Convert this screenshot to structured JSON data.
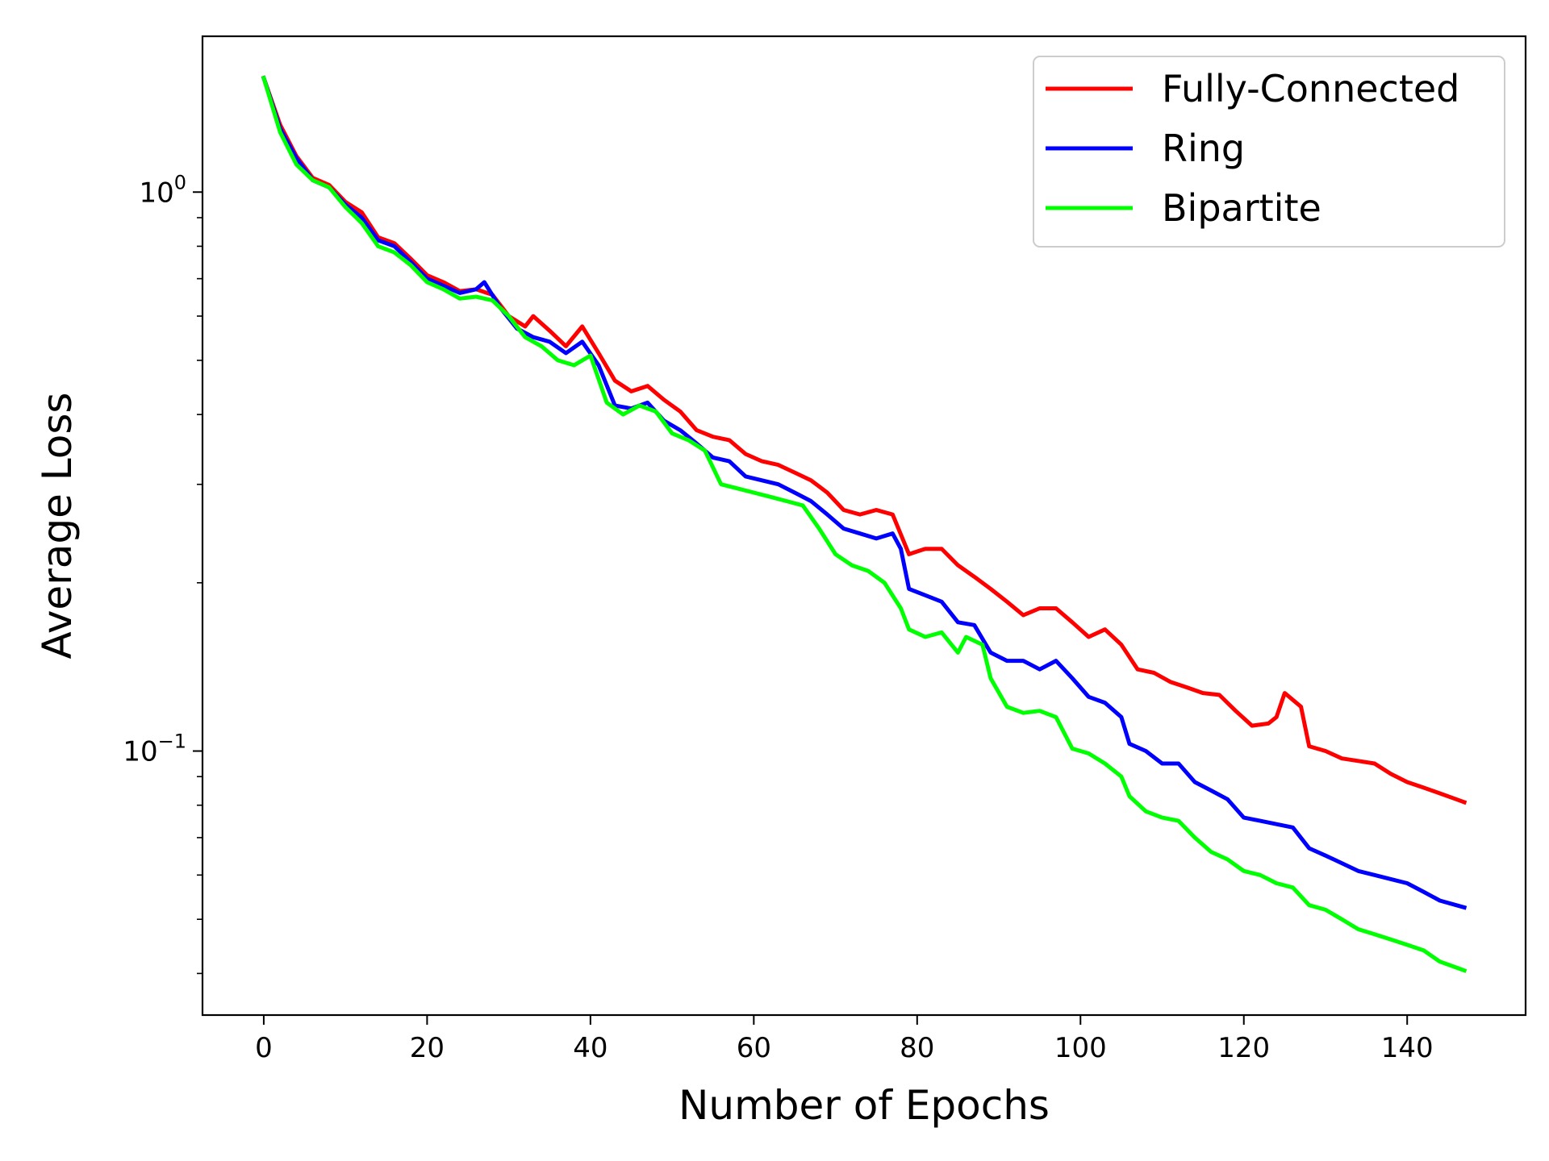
{
  "chart_data": {
    "type": "line",
    "xlabel": "Number of Epochs",
    "ylabel": "Average Loss",
    "yscale": "log",
    "xlim": [
      -7.5,
      154.5
    ],
    "ylim": [
      0.0337,
      1.9
    ],
    "xticks": [
      0,
      20,
      40,
      60,
      80,
      100,
      120,
      140
    ],
    "yticks": [
      {
        "value": 1.0,
        "base": "10",
        "exp": "0"
      },
      {
        "value": 0.1,
        "base": "10",
        "exp": "−1"
      }
    ],
    "grid": false,
    "legend_position": "top-right",
    "series": [
      {
        "name": "Fully-Connected",
        "color": "#ff0000",
        "points": [
          [
            0,
            1.6
          ],
          [
            2,
            1.32
          ],
          [
            4,
            1.16
          ],
          [
            6,
            1.06
          ],
          [
            8,
            1.03
          ],
          [
            10,
            0.96
          ],
          [
            12,
            0.92
          ],
          [
            14,
            0.83
          ],
          [
            16,
            0.81
          ],
          [
            18,
            0.76
          ],
          [
            20,
            0.71
          ],
          [
            22,
            0.69
          ],
          [
            24,
            0.665
          ],
          [
            26,
            0.67
          ],
          [
            28,
            0.655
          ],
          [
            30,
            0.6
          ],
          [
            32,
            0.575
          ],
          [
            33,
            0.6
          ],
          [
            35,
            0.565
          ],
          [
            37,
            0.53
          ],
          [
            39,
            0.575
          ],
          [
            41,
            0.515
          ],
          [
            43,
            0.46
          ],
          [
            45,
            0.44
          ],
          [
            47,
            0.45
          ],
          [
            49,
            0.425
          ],
          [
            51,
            0.405
          ],
          [
            53,
            0.375
          ],
          [
            55,
            0.365
          ],
          [
            57,
            0.36
          ],
          [
            59,
            0.34
          ],
          [
            61,
            0.33
          ],
          [
            63,
            0.325
          ],
          [
            65,
            0.315
          ],
          [
            67,
            0.305
          ],
          [
            69,
            0.29
          ],
          [
            71,
            0.27
          ],
          [
            73,
            0.265
          ],
          [
            75,
            0.27
          ],
          [
            77,
            0.265
          ],
          [
            79,
            0.225
          ],
          [
            81,
            0.23
          ],
          [
            83,
            0.23
          ],
          [
            85,
            0.215
          ],
          [
            87,
            0.205
          ],
          [
            89,
            0.195
          ],
          [
            91,
            0.185
          ],
          [
            93,
            0.175
          ],
          [
            95,
            0.18
          ],
          [
            97,
            0.18
          ],
          [
            99,
            0.17
          ],
          [
            101,
            0.16
          ],
          [
            103,
            0.165
          ],
          [
            105,
            0.155
          ],
          [
            107,
            0.14
          ],
          [
            109,
            0.138
          ],
          [
            111,
            0.133
          ],
          [
            113,
            0.13
          ],
          [
            115,
            0.127
          ],
          [
            117,
            0.126
          ],
          [
            119,
            0.118
          ],
          [
            121,
            0.111
          ],
          [
            123,
            0.112
          ],
          [
            124,
            0.115
          ],
          [
            125,
            0.127
          ],
          [
            127,
            0.12
          ],
          [
            128,
            0.102
          ],
          [
            130,
            0.1
          ],
          [
            132,
            0.097
          ],
          [
            134,
            0.096
          ],
          [
            136,
            0.095
          ],
          [
            138,
            0.091
          ],
          [
            140,
            0.088
          ],
          [
            142,
            0.086
          ],
          [
            144,
            0.084
          ],
          [
            146,
            0.082
          ],
          [
            147,
            0.081
          ]
        ]
      },
      {
        "name": "Ring",
        "color": "#0000ff",
        "points": [
          [
            0,
            1.6
          ],
          [
            2,
            1.3
          ],
          [
            4,
            1.15
          ],
          [
            6,
            1.05
          ],
          [
            8,
            1.02
          ],
          [
            10,
            0.95
          ],
          [
            12,
            0.9
          ],
          [
            14,
            0.82
          ],
          [
            16,
            0.8
          ],
          [
            18,
            0.75
          ],
          [
            20,
            0.7
          ],
          [
            22,
            0.68
          ],
          [
            24,
            0.66
          ],
          [
            26,
            0.67
          ],
          [
            27,
            0.69
          ],
          [
            29,
            0.62
          ],
          [
            31,
            0.57
          ],
          [
            33,
            0.55
          ],
          [
            35,
            0.54
          ],
          [
            37,
            0.515
          ],
          [
            39,
            0.54
          ],
          [
            41,
            0.49
          ],
          [
            43,
            0.415
          ],
          [
            45,
            0.41
          ],
          [
            47,
            0.42
          ],
          [
            49,
            0.39
          ],
          [
            51,
            0.375
          ],
          [
            53,
            0.355
          ],
          [
            55,
            0.335
          ],
          [
            57,
            0.33
          ],
          [
            59,
            0.31
          ],
          [
            61,
            0.305
          ],
          [
            63,
            0.3
          ],
          [
            65,
            0.29
          ],
          [
            67,
            0.28
          ],
          [
            69,
            0.265
          ],
          [
            71,
            0.25
          ],
          [
            73,
            0.245
          ],
          [
            75,
            0.24
          ],
          [
            77,
            0.245
          ],
          [
            78,
            0.23
          ],
          [
            79,
            0.195
          ],
          [
            81,
            0.19
          ],
          [
            83,
            0.185
          ],
          [
            85,
            0.17
          ],
          [
            87,
            0.168
          ],
          [
            89,
            0.15
          ],
          [
            91,
            0.145
          ],
          [
            93,
            0.145
          ],
          [
            95,
            0.14
          ],
          [
            97,
            0.145
          ],
          [
            99,
            0.135
          ],
          [
            101,
            0.125
          ],
          [
            103,
            0.122
          ],
          [
            105,
            0.115
          ],
          [
            106,
            0.103
          ],
          [
            108,
            0.1
          ],
          [
            110,
            0.095
          ],
          [
            112,
            0.095
          ],
          [
            114,
            0.088
          ],
          [
            116,
            0.085
          ],
          [
            118,
            0.082
          ],
          [
            120,
            0.076
          ],
          [
            122,
            0.075
          ],
          [
            124,
            0.074
          ],
          [
            126,
            0.073
          ],
          [
            128,
            0.067
          ],
          [
            130,
            0.065
          ],
          [
            132,
            0.063
          ],
          [
            134,
            0.061
          ],
          [
            136,
            0.06
          ],
          [
            138,
            0.059
          ],
          [
            140,
            0.058
          ],
          [
            142,
            0.056
          ],
          [
            144,
            0.054
          ],
          [
            146,
            0.053
          ],
          [
            147,
            0.0525
          ]
        ]
      },
      {
        "name": "Bipartite",
        "color": "#00ff00",
        "points": [
          [
            0,
            1.6
          ],
          [
            2,
            1.28
          ],
          [
            4,
            1.12
          ],
          [
            6,
            1.05
          ],
          [
            8,
            1.02
          ],
          [
            10,
            0.94
          ],
          [
            12,
            0.88
          ],
          [
            14,
            0.8
          ],
          [
            16,
            0.78
          ],
          [
            18,
            0.74
          ],
          [
            20,
            0.69
          ],
          [
            22,
            0.67
          ],
          [
            24,
            0.645
          ],
          [
            26,
            0.65
          ],
          [
            28,
            0.64
          ],
          [
            30,
            0.6
          ],
          [
            32,
            0.55
          ],
          [
            34,
            0.53
          ],
          [
            36,
            0.5
          ],
          [
            38,
            0.49
          ],
          [
            40,
            0.51
          ],
          [
            42,
            0.42
          ],
          [
            44,
            0.4
          ],
          [
            46,
            0.415
          ],
          [
            48,
            0.405
          ],
          [
            50,
            0.37
          ],
          [
            52,
            0.36
          ],
          [
            54,
            0.345
          ],
          [
            56,
            0.3
          ],
          [
            58,
            0.295
          ],
          [
            60,
            0.29
          ],
          [
            62,
            0.285
          ],
          [
            64,
            0.28
          ],
          [
            66,
            0.275
          ],
          [
            68,
            0.25
          ],
          [
            70,
            0.225
          ],
          [
            72,
            0.215
          ],
          [
            74,
            0.21
          ],
          [
            76,
            0.2
          ],
          [
            78,
            0.18
          ],
          [
            79,
            0.165
          ],
          [
            81,
            0.16
          ],
          [
            83,
            0.163
          ],
          [
            85,
            0.15
          ],
          [
            86,
            0.16
          ],
          [
            88,
            0.155
          ],
          [
            89,
            0.135
          ],
          [
            91,
            0.12
          ],
          [
            93,
            0.117
          ],
          [
            95,
            0.118
          ],
          [
            97,
            0.115
          ],
          [
            99,
            0.101
          ],
          [
            101,
            0.099
          ],
          [
            103,
            0.095
          ],
          [
            105,
            0.09
          ],
          [
            106,
            0.083
          ],
          [
            108,
            0.078
          ],
          [
            110,
            0.076
          ],
          [
            112,
            0.075
          ],
          [
            114,
            0.07
          ],
          [
            116,
            0.066
          ],
          [
            118,
            0.064
          ],
          [
            120,
            0.061
          ],
          [
            122,
            0.06
          ],
          [
            124,
            0.058
          ],
          [
            126,
            0.057
          ],
          [
            128,
            0.053
          ],
          [
            130,
            0.052
          ],
          [
            132,
            0.05
          ],
          [
            134,
            0.048
          ],
          [
            136,
            0.047
          ],
          [
            138,
            0.046
          ],
          [
            140,
            0.045
          ],
          [
            142,
            0.044
          ],
          [
            144,
            0.042
          ],
          [
            146,
            0.041
          ],
          [
            147,
            0.0405
          ]
        ]
      }
    ]
  }
}
